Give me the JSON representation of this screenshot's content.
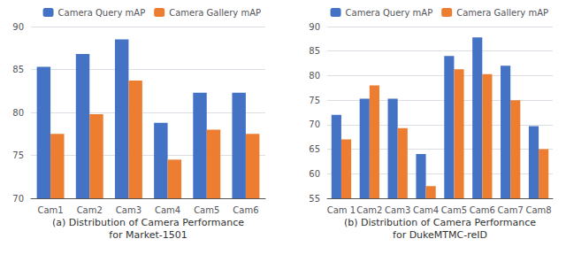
{
  "chart_data": [
    {
      "type": "bar",
      "title": "(a) Distribution of Camera Performance",
      "subtitle": "for Market-1501",
      "categories": [
        "Cam1",
        "Cam2",
        "Cam3",
        "Cam4",
        "Cam5",
        "Cam6"
      ],
      "series": [
        {
          "name": "Camera Query mAP",
          "color": "#4472C4",
          "values": [
            85.3,
            86.8,
            88.5,
            78.8,
            82.3,
            82.3
          ]
        },
        {
          "name": "Camera Gallery mAP",
          "color": "#ED7D31",
          "values": [
            77.5,
            79.8,
            83.7,
            74.5,
            78.0,
            77.5
          ]
        }
      ],
      "ylim": [
        70,
        90
      ],
      "yticks": [
        70,
        75,
        80,
        85,
        90
      ],
      "grid": true,
      "legend": "upper right"
    },
    {
      "type": "bar",
      "title": "(b) Distribution of Camera Performance",
      "subtitle": "for DukeMTMC-reID",
      "categories": [
        "Cam 1",
        "Cam2",
        "Cam3",
        "Cam4",
        "Cam5",
        "Cam6",
        "Cam7",
        "Cam8"
      ],
      "series": [
        {
          "name": "Camera Query mAP",
          "color": "#4472C4",
          "values": [
            72.0,
            75.3,
            75.3,
            64.0,
            84.0,
            87.8,
            82.0,
            69.7
          ]
        },
        {
          "name": "Camera Gallery mAP",
          "color": "#ED7D31",
          "values": [
            67.0,
            78.0,
            69.3,
            57.5,
            81.3,
            80.3,
            75.0,
            65.0
          ]
        }
      ],
      "ylim": [
        55,
        90
      ],
      "yticks": [
        55,
        60,
        65,
        70,
        75,
        80,
        85,
        90
      ],
      "grid": true,
      "legend": "upper right"
    }
  ]
}
